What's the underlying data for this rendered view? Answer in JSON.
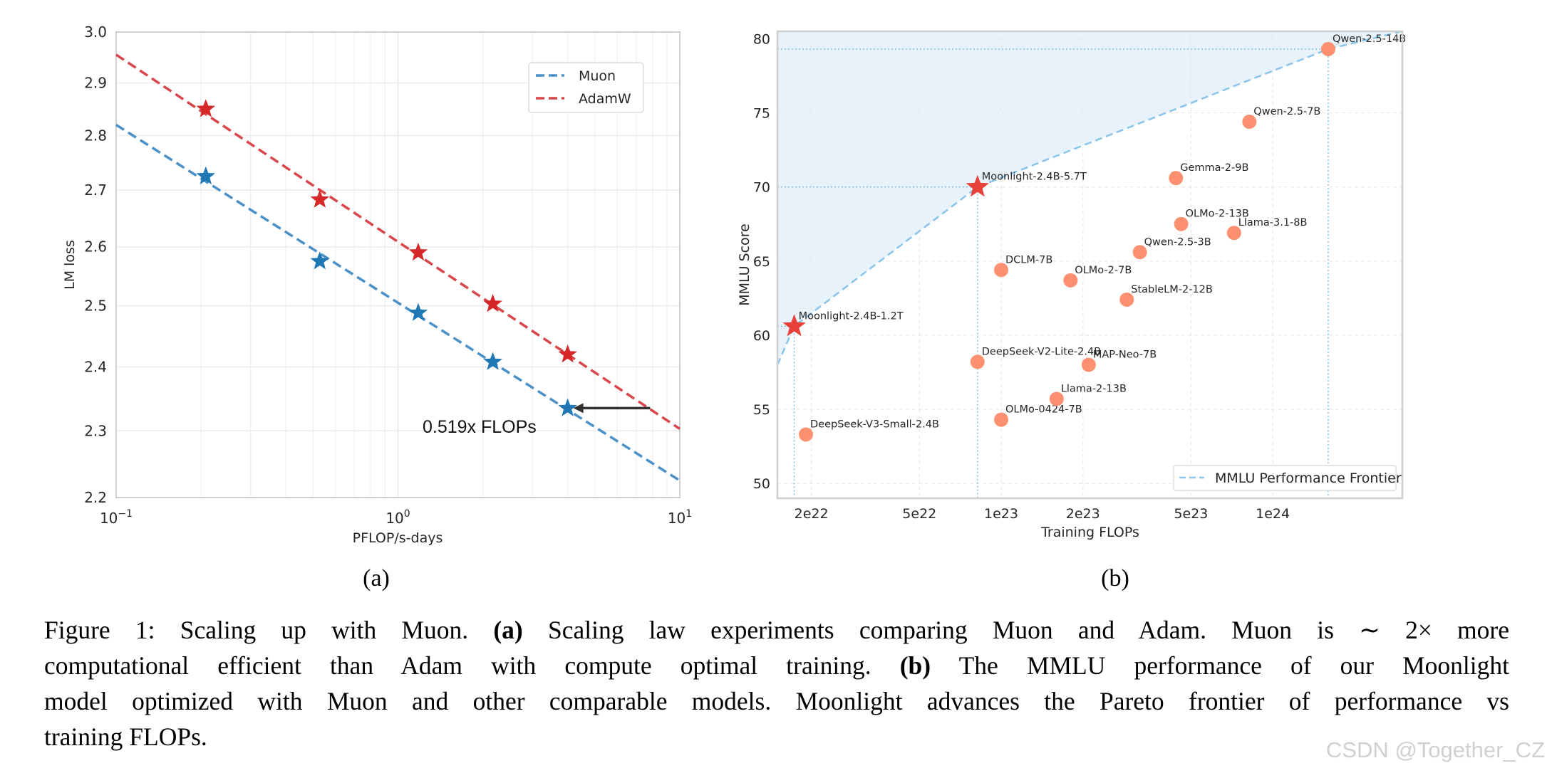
{
  "chart_data": [
    {
      "type": "scatter",
      "subfigure_label": "(a)",
      "xlabel": "PFLOP/s-days",
      "ylabel": "LM loss",
      "xscale": "log",
      "yscale": "log",
      "xlim": [
        0.1,
        10
      ],
      "ylim": [
        2.2,
        3.0
      ],
      "xticks": [
        {
          "value": 0.1,
          "base": "10",
          "exp": "−1"
        },
        {
          "value": 1,
          "base": "10",
          "exp": "0"
        },
        {
          "value": 10,
          "base": "10",
          "exp": "1"
        }
      ],
      "yticks": [
        "2.2",
        "2.3",
        "2.4",
        "2.5",
        "2.6",
        "2.7",
        "2.8",
        "2.9",
        "3.0"
      ],
      "grid": true,
      "legend_position": "top-right",
      "series": [
        {
          "name": "Muon",
          "color": "#1f77b4",
          "line_color": "#4a90c8",
          "marker": "star",
          "x": [
            0.208,
            0.528,
            1.18,
            2.17,
            4.0
          ],
          "y": [
            2.725,
            2.575,
            2.488,
            2.408,
            2.335
          ],
          "fit_line": {
            "x": [
              0.1,
              10
            ],
            "y": [
              2.82,
              2.225
            ]
          }
        },
        {
          "name": "AdamW",
          "color": "#d62728",
          "line_color": "#d9464a",
          "marker": "star",
          "x": [
            0.208,
            0.528,
            1.18,
            2.17,
            4.0
          ],
          "y": [
            2.85,
            2.683,
            2.59,
            2.503,
            2.42
          ],
          "fit_line": {
            "x": [
              0.1,
              10
            ],
            "y": [
              2.955,
              2.303
            ]
          }
        }
      ],
      "annotation": {
        "text": "0.519x FLOPs",
        "arrow_from": {
          "x": 7.85,
          "y": 2.335
        },
        "arrow_to": {
          "x": 4.0,
          "y": 2.335
        }
      }
    },
    {
      "type": "scatter",
      "subfigure_label": "(b)",
      "xlabel": "Training FLOPs",
      "ylabel": "MMLU Score",
      "xscale": "log",
      "xlim": [
        1.5e+22,
        3e+24
      ],
      "ylim": [
        49.0,
        80.5
      ],
      "xticks": [
        {
          "value": 2e+22,
          "label": "2e22"
        },
        {
          "value": 5e+22,
          "label": "5e22"
        },
        {
          "value": 1e+23,
          "label": "1e23"
        },
        {
          "value": 2e+23,
          "label": "2e23"
        },
        {
          "value": 5e+23,
          "label": "5e23"
        },
        {
          "value": 1e+24,
          "label": "1e24"
        }
      ],
      "yticks": [
        50,
        55,
        60,
        65,
        70,
        75,
        80
      ],
      "grid": true,
      "legend_position": "bottom-right",
      "point_color": "#fc9070",
      "star_color": "#e8413a",
      "frontier_color": "#88c4ec",
      "fill_color": "#e8f2fa",
      "points": [
        {
          "label": "Moonlight-2.4B-1.2T",
          "x": 1.73e+22,
          "y": 60.6,
          "marker": "star"
        },
        {
          "label": "Moonlight-2.4B-5.7T",
          "x": 8.18e+22,
          "y": 70.0,
          "marker": "star"
        },
        {
          "label": "DeepSeek-V3-Small-2.4B",
          "x": 1.91e+22,
          "y": 53.3,
          "marker": "circle"
        },
        {
          "label": "DCLM-7B",
          "x": 1e+23,
          "y": 64.4,
          "marker": "circle"
        },
        {
          "label": "DeepSeek-V2-Lite-2.4B",
          "x": 8.18e+22,
          "y": 58.2,
          "marker": "circle"
        },
        {
          "label": "OLMo-0424-7B",
          "x": 1e+23,
          "y": 54.3,
          "marker": "circle"
        },
        {
          "label": "Llama-2-13B",
          "x": 1.6e+23,
          "y": 55.7,
          "marker": "circle"
        },
        {
          "label": "OLMo-2-7B",
          "x": 1.8e+23,
          "y": 63.7,
          "marker": "circle"
        },
        {
          "label": "MAP-Neo-7B",
          "x": 2.1e+23,
          "y": 58.0,
          "marker": "circle"
        },
        {
          "label": "StableLM-2-12B",
          "x": 2.9e+23,
          "y": 62.4,
          "marker": "circle"
        },
        {
          "label": "Qwen-2.5-3B",
          "x": 3.24e+23,
          "y": 65.6,
          "marker": "circle"
        },
        {
          "label": "Gemma-2-9B",
          "x": 4.4e+23,
          "y": 70.6,
          "marker": "circle"
        },
        {
          "label": "OLMo-2-13B",
          "x": 4.6e+23,
          "y": 67.5,
          "marker": "circle"
        },
        {
          "label": "Llama-3.1-8B",
          "x": 7.2e+23,
          "y": 66.9,
          "marker": "circle"
        },
        {
          "label": "Qwen-2.5-7B",
          "x": 8.2e+23,
          "y": 74.4,
          "marker": "circle"
        },
        {
          "label": "Qwen-2.5-14B",
          "x": 1.6e+24,
          "y": 79.3,
          "marker": "circle"
        }
      ],
      "frontier": {
        "name": "MMLU Performance Frontier",
        "x": [
          1.5e+22,
          1.73e+22,
          8.18e+22,
          1.6e+24,
          3e+24
        ],
        "y": [
          58.0,
          60.6,
          70.0,
          79.3,
          80.5
        ]
      }
    }
  ],
  "caption": {
    "lines": [
      [
        {
          "t": "Figure 1: Scaling up with Muon. "
        },
        {
          "t": "(a)",
          "b": true
        },
        {
          "t": " Scaling law experiments comparing Muon and Adam. Muon is ∼ 2× more"
        }
      ],
      [
        {
          "t": "computational efficient than Adam with compute optimal training. "
        },
        {
          "t": "(b)",
          "b": true
        },
        {
          "t": " The MMLU performance of our Moonlight"
        }
      ],
      [
        {
          "t": "model optimized with Muon and other comparable models. Moonlight advances the Pareto frontier of performance vs"
        }
      ],
      [
        {
          "t": "training FLOPs."
        }
      ]
    ]
  },
  "watermark": "CSDN @Together_CZ"
}
